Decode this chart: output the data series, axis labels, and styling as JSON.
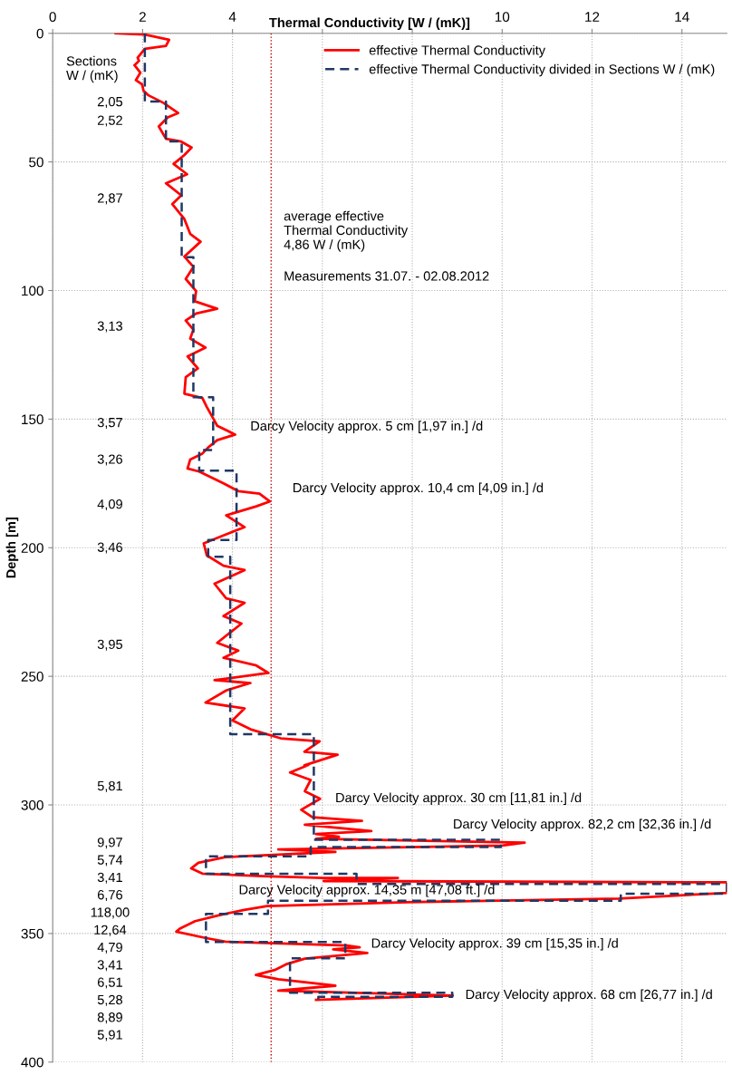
{
  "chart_data": {
    "type": "line",
    "xlabel": "Thermal Conductivity [W / (mK)]",
    "ylabel": "Depth [m]",
    "xlim": [
      0,
      15
    ],
    "xticks": [
      0,
      2,
      4,
      {
        "value": 6,
        "label": null
      },
      {
        "value": 8,
        "label": null
      },
      10,
      12,
      14
    ],
    "ylim": [
      400,
      0
    ],
    "yticks": [
      0,
      50,
      100,
      150,
      200,
      250,
      300,
      350,
      400
    ],
    "grid": true,
    "legend": "top right",
    "series": [
      {
        "name": "effective Thermal Conductivity",
        "color": "#ff0000",
        "line_style": "solid",
        "x": [
          1.4,
          2.05,
          2.59,
          2.52,
          2.05,
          1.89,
          1.92,
          1.82,
          1.95,
          1.85,
          1.99,
          2.02,
          2.12,
          2.46,
          2.79,
          2.56,
          2.36,
          2.52,
          2.86,
          3.09,
          2.93,
          2.69,
          2.99,
          2.52,
          2.86,
          2.66,
          2.93,
          3.06,
          3.29,
          2.93,
          3.13,
          2.96,
          3.19,
          3.16,
          3.66,
          3.19,
          2.96,
          3.13,
          3.06,
          3.4,
          3.0,
          3.23,
          2.96,
          2.93,
          3.33,
          3.43,
          3.56,
          3.66,
          4.06,
          3.66,
          3.46,
          3.33,
          3.06,
          3.0,
          3.26,
          3.8,
          4.13,
          4.6,
          4.83,
          4.53,
          3.86,
          4.27,
          3.76,
          3.36,
          3.43,
          3.8,
          4.27,
          3.6,
          3.86,
          4.27,
          3.8,
          4.2,
          3.66,
          4.13,
          3.8,
          4.53,
          4.8,
          3.6,
          4.4,
          3.86,
          3.4,
          4.27,
          4.0,
          4.4,
          5.07,
          5.94,
          5.6,
          6.34,
          5.6,
          5.69,
          5.28,
          5.74,
          5.61,
          5.95,
          5.53,
          5.78,
          6.88,
          5.61,
          7.09,
          5.86,
          6.37,
          5.86,
          10.5,
          10.0,
          5.02,
          6.29,
          3.84,
          3.24,
          3.08,
          3.33,
          4.68,
          6.03,
          7.68,
          6.03,
          15,
          15,
          12.6,
          7.89,
          4.77,
          4.26,
          3.67,
          3.17,
          2.83,
          2.75,
          3.42,
          3.84,
          6.54,
          6.83,
          6.24,
          7.0,
          5.61,
          5.19,
          4.94,
          4.52,
          5.02,
          6.29,
          5.02,
          8.9,
          5.86
        ],
        "values": [
          0,
          0.5,
          2.5,
          4.9,
          6.0,
          9.5,
          10.7,
          12.4,
          15.3,
          18.2,
          19.9,
          22.3,
          24.0,
          27,
          31,
          32.7,
          36.2,
          41,
          42.1,
          44.4,
          47.3,
          50.8,
          54.8,
          58.3,
          63,
          66.4,
          72.2,
          78,
          81,
          86.8,
          90.8,
          95.5,
          100.2,
          104.2,
          107.1,
          108.9,
          111.7,
          115.2,
          118.7,
          122.2,
          125.6,
          130.3,
          133.7,
          140.1,
          141.8,
          145.3,
          149.4,
          152.6,
          156,
          158.2,
          161,
          163.4,
          165.7,
          169.2,
          170.4,
          175,
          178,
          179,
          182,
          183.9,
          187.4,
          192,
          195.5,
          198.3,
          203,
          207,
          208.7,
          214,
          219.7,
          221.4,
          226.6,
          229.5,
          237,
          240,
          242.8,
          245.8,
          248.7,
          251.5,
          252.6,
          255.5,
          260.2,
          262.5,
          267.1,
          270.6,
          274.1,
          275.3,
          279.3,
          280.5,
          284.6,
          284.5,
          287.4,
          290.3,
          294.7,
          297.6,
          301.9,
          304.8,
          306.2,
          307.7,
          310.2,
          311.3,
          312.4,
          313.2,
          314.7,
          315.8,
          317.3,
          318.3,
          320.3,
          322.5,
          324.7,
          326.7,
          327.7,
          328.4,
          328.4,
          329.6,
          330.1,
          334.2,
          336.4,
          337.8,
          339.3,
          340.8,
          343,
          345.2,
          348.1,
          349.3,
          351.8,
          353.2,
          354.7,
          355.4,
          356.2,
          357.6,
          359.8,
          362.0,
          364.2,
          366.1,
          367.8,
          370.3,
          372.2,
          374.1,
          375.8
        ]
      },
      {
        "name": "effective Thermal Conductivity divided in Sections W / (mK)",
        "color": "#1f3864",
        "line_style": "dashed",
        "x": [
          2.05,
          2.05,
          2.52,
          2.52,
          2.87,
          2.87,
          3.13,
          3.13,
          3.57,
          3.57,
          3.26,
          3.26,
          4.09,
          4.09,
          3.46,
          3.46,
          3.95,
          3.95,
          5.81,
          5.81,
          9.97,
          9.97,
          5.74,
          5.74,
          3.41,
          3.41,
          6.76,
          6.76,
          15,
          15,
          12.64,
          12.64,
          4.79,
          4.79,
          3.41,
          3.41,
          6.51,
          6.51,
          5.28,
          5.28,
          8.89,
          8.89,
          5.91,
          5.91
        ],
        "values": [
          0,
          26.5,
          26.5,
          42,
          42,
          87,
          87,
          141.5,
          141.5,
          162,
          162,
          170,
          170,
          197,
          197,
          203.5,
          203.5,
          272.5,
          272.5,
          313.6,
          313.6,
          316.4,
          316.4,
          320,
          320,
          326.8,
          326.8,
          330.7,
          330.7,
          334.5,
          334.5,
          337.3,
          337.3,
          342.4,
          342.4,
          353.3,
          353.3,
          359.6,
          359.6,
          373,
          373,
          374.6,
          374.6,
          376
        ]
      }
    ],
    "ref_lines": [
      {
        "axis": "x",
        "value": 4.86,
        "color": "#c00000",
        "line_style": "dotted"
      }
    ],
    "annotations": [
      "Sections\nW / (mK)",
      "2,05",
      "2,52",
      "2,87",
      "3,13",
      "3,57",
      "3,26",
      "4,09",
      "3,46",
      "3,95",
      "5,81",
      "9,97",
      "5,74",
      "3,41",
      "6,76",
      "118,00",
      "12,64",
      "4,79",
      "3,41",
      "6,51",
      "5,28",
      "8,89",
      "5,91",
      {
        "text": "average effective\nThermal Conductivity\n4,86 W / (mK)",
        "x": 4.86,
        "y": 77
      },
      {
        "text": "Measurements 31.07. - 02.08.2012",
        "x": 4.86,
        "y": 94.8
      },
      {
        "text": "Darcy Velocity approx. 5 cm [1,97 in.] /d",
        "x": 4.06,
        "y": 156
      },
      {
        "text": "Darcy Velocity approx. 10,4 cm [4,09 in.] /d",
        "x": 4.83,
        "y": 182
      },
      {
        "text": "Darcy Velocity approx. 30 cm [11,81 in.] /d",
        "x": 5.95,
        "y": 297.6
      },
      {
        "text": "Darcy Velocity approx. 82,2 cm [32,36 in.] /d",
        "x": 10.5,
        "y": 314.7
      },
      {
        "text": "Darcy Velocity approx. 14,35 m [47,08 ft.] /d",
        "x": 7.89,
        "y": 337.8
      },
      {
        "text": "Darcy Velocity approx. 39 cm [15,35 in.] /d",
        "x": 7.0,
        "y": 357.6
      },
      {
        "text": "Darcy Velocity approx. 68 cm [26,77 in.] /d",
        "x": 8.9,
        "y": 374.1
      }
    ]
  }
}
